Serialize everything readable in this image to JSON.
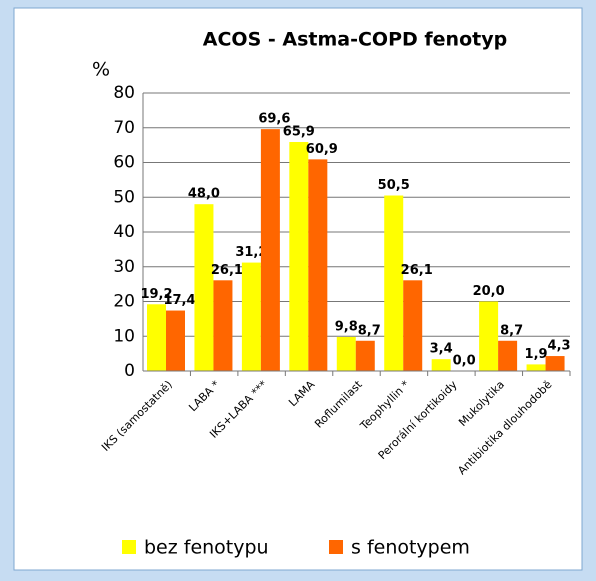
{
  "chart_data": {
    "type": "bar",
    "title": "ACOS - Astma-COPD fenotyp",
    "y_label": "%",
    "categories": [
      "IKS (samostatně)",
      "LABA *",
      "IKS+LABA ***",
      "LAMA",
      "Roflumilast",
      "Teophyllin *",
      "Perorální kortikoidy",
      "Mukolytika",
      "Antibiotika dlouhodobě"
    ],
    "series": [
      {
        "name": "bez fenotypu",
        "color": "#ffff00",
        "values": [
          19.2,
          48.0,
          31.2,
          65.9,
          9.8,
          50.5,
          3.4,
          20.0,
          1.9
        ],
        "value_labels": [
          "19,2",
          "48,0",
          "31,2",
          "65,9",
          "9,8",
          "50,5",
          "3,4",
          "20,0",
          "1,9"
        ]
      },
      {
        "name": "s fenotypem",
        "color": "#ff6600",
        "values": [
          17.4,
          26.1,
          69.6,
          60.9,
          8.7,
          26.1,
          0.0,
          8.7,
          4.3
        ],
        "value_labels": [
          "17,4",
          "26,1",
          "69,6",
          "60,9",
          "8,7",
          "26,1",
          "0,0",
          "8,7",
          "4,3"
        ]
      }
    ],
    "ylim": [
      0,
      80
    ],
    "yticks": [
      0,
      10,
      20,
      30,
      40,
      50,
      60,
      70,
      80
    ],
    "grid": true,
    "legend": "bottom"
  }
}
